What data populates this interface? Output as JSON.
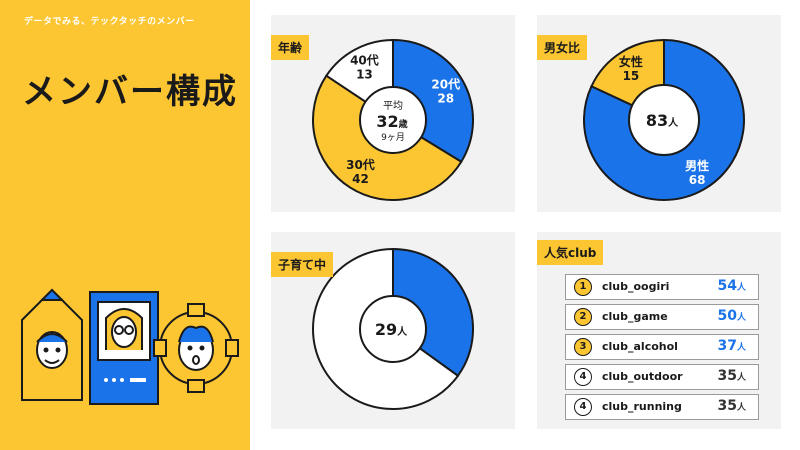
{
  "header": {
    "subtitle": "データでみる、テックタッチのメンバー",
    "title": "メンバー構成"
  },
  "colors": {
    "yellow": "#fcc633",
    "blue": "#1a73e8",
    "white": "#ffffff",
    "panel": "#f2f2f2",
    "ink": "#1a1a1a"
  },
  "chart_data": [
    {
      "type": "pie",
      "title": "年齢",
      "center": {
        "label": "平均",
        "value": "32",
        "unit": "歳",
        "sub": "9ヶ月"
      },
      "slices": [
        {
          "name": "20代",
          "value": 28,
          "color": "#1a73e8"
        },
        {
          "name": "30代",
          "value": 42,
          "color": "#fcc633"
        },
        {
          "name": "40代",
          "value": 13,
          "color": "#ffffff"
        }
      ]
    },
    {
      "type": "pie",
      "title": "男女比",
      "center": {
        "value": "83",
        "unit": "人"
      },
      "slices": [
        {
          "name": "男性",
          "value": 68,
          "color": "#1a73e8"
        },
        {
          "name": "女性",
          "value": 15,
          "color": "#fcc633"
        }
      ]
    },
    {
      "type": "pie",
      "title": "子育て中",
      "center": {
        "value": "29",
        "unit": "人"
      },
      "slices": [
        {
          "value": 29,
          "color": "#1a73e8"
        },
        {
          "value": 54,
          "color": "#ffffff"
        }
      ]
    },
    {
      "type": "table",
      "title": "人気club",
      "unit": "人",
      "rows": [
        {
          "rank": "1",
          "name": "club_oogiri",
          "count": 54
        },
        {
          "rank": "2",
          "name": "club_game",
          "count": 50
        },
        {
          "rank": "3",
          "name": "club_alcohol",
          "count": 37
        },
        {
          "rank": "4",
          "name": "club_outdoor",
          "count": 35
        },
        {
          "rank": "4",
          "name": "club_running",
          "count": 35
        }
      ]
    }
  ]
}
